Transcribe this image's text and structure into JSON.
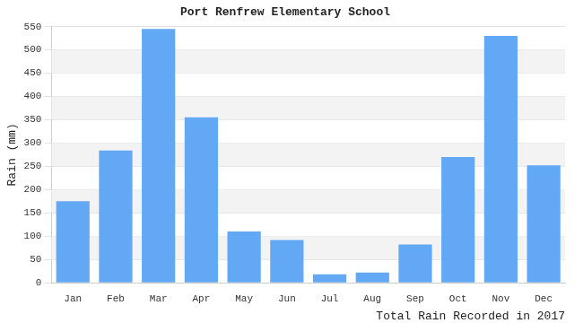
{
  "chart_data": {
    "type": "bar",
    "title": "Port Renfrew Elementary School",
    "x_label": "Total Rain Recorded in 2017",
    "y_label": "Rain (mm)",
    "categories": [
      "Jan",
      "Feb",
      "Mar",
      "Apr",
      "May",
      "Jun",
      "Jul",
      "Aug",
      "Sep",
      "Oct",
      "Nov",
      "Dec"
    ],
    "values": [
      175,
      284,
      545,
      355,
      110,
      92,
      18,
      22,
      82,
      270,
      530,
      252
    ],
    "color": "#62a8f5",
    "ylim": [
      0,
      550
    ],
    "yticks": [
      0,
      50,
      100,
      150,
      200,
      250,
      300,
      350,
      400,
      450,
      500,
      550
    ],
    "grid": true
  }
}
